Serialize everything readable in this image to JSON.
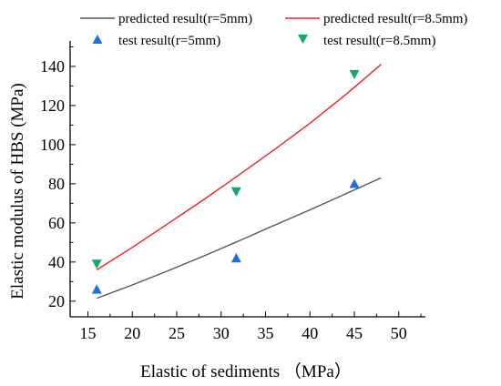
{
  "chart_data": {
    "type": "scatter",
    "title": "",
    "xlabel": "Elastic of sediments （MPa）",
    "ylabel": "Elastic modulus of HBS (MPa)",
    "xlim": [
      13,
      53
    ],
    "ylim": [
      12,
      153
    ],
    "x_ticks": [
      15,
      20,
      25,
      30,
      35,
      40,
      45,
      50
    ],
    "y_ticks": [
      20,
      40,
      60,
      80,
      100,
      120,
      140
    ],
    "grid": false,
    "legend_position": "top",
    "series": [
      {
        "name": "predicted result(r=5mm)",
        "kind": "line",
        "color": "#555555",
        "x": [
          16,
          20,
          24,
          28,
          32,
          36,
          40,
          44,
          48
        ],
        "y": [
          21.5,
          28.3,
          35.5,
          43.0,
          50.8,
          58.8,
          66.7,
          74.8,
          83.0
        ]
      },
      {
        "name": "predicted result(r=8.5mm)",
        "kind": "line",
        "color": "#ee2222",
        "x": [
          16,
          20,
          24,
          28,
          32,
          36,
          40,
          44,
          48
        ],
        "y": [
          36.0,
          47.5,
          59.6,
          71.8,
          84.5,
          97.5,
          111.0,
          125.5,
          141.0
        ]
      },
      {
        "name": "test result(r=5mm)",
        "kind": "scatter",
        "marker": "triangle-up",
        "color": "#1f6fe0",
        "x": [
          16,
          31.7,
          45
        ],
        "y": [
          26,
          42,
          80
        ]
      },
      {
        "name": "test result(r=8.5mm)",
        "kind": "scatter",
        "marker": "triangle-down",
        "color": "#17a86b",
        "x": [
          16,
          31.7,
          45
        ],
        "y": [
          39,
          76,
          136
        ]
      }
    ]
  }
}
